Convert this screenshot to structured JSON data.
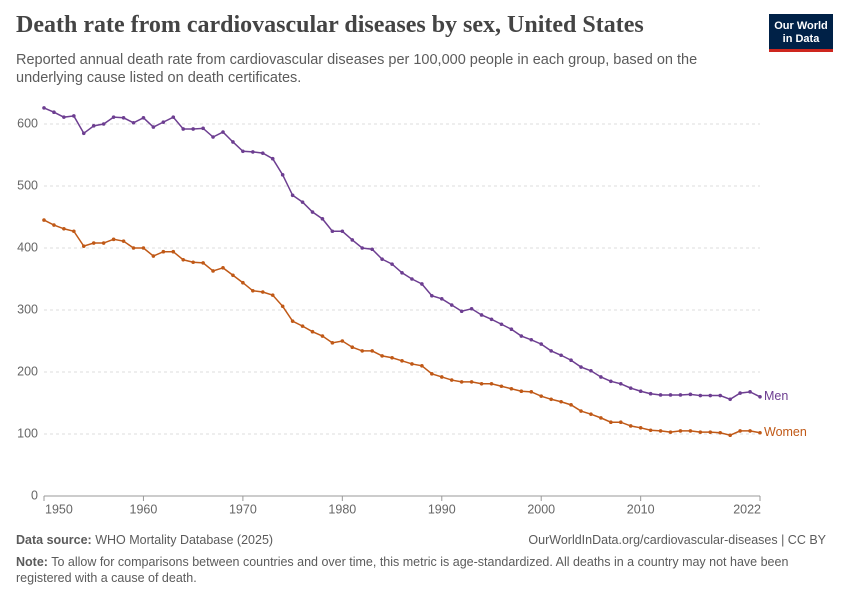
{
  "chart_data": {
    "type": "line",
    "title": "Death rate from cardiovascular diseases by sex, United States",
    "subtitle": "Reported annual death rate from cardiovascular diseases per 100,000 people in each group, based on the underlying cause listed on death certificates.",
    "logo": [
      "Our World",
      "in Data"
    ],
    "x": [
      1950,
      1951,
      1952,
      1953,
      1954,
      1955,
      1956,
      1957,
      1958,
      1959,
      1960,
      1961,
      1962,
      1963,
      1964,
      1965,
      1966,
      1967,
      1968,
      1969,
      1970,
      1971,
      1972,
      1973,
      1974,
      1975,
      1976,
      1977,
      1978,
      1979,
      1980,
      1981,
      1982,
      1983,
      1984,
      1985,
      1986,
      1987,
      1988,
      1989,
      1990,
      1991,
      1992,
      1993,
      1994,
      1995,
      1996,
      1997,
      1998,
      1999,
      2000,
      2001,
      2002,
      2003,
      2004,
      2005,
      2006,
      2007,
      2008,
      2009,
      2010,
      2011,
      2012,
      2013,
      2014,
      2015,
      2016,
      2017,
      2018,
      2019,
      2020,
      2021,
      2022
    ],
    "series": [
      {
        "name": "Men",
        "color": "#6d3e91",
        "values": [
          626,
          619,
          611,
          613,
          585,
          597,
          600,
          611,
          610,
          602,
          610,
          595,
          603,
          611,
          592,
          592,
          593,
          579,
          587,
          571,
          556,
          555,
          553,
          544,
          518,
          485,
          474,
          458,
          447,
          427,
          427,
          413,
          400,
          398,
          382,
          374,
          360,
          350,
          342,
          323,
          318,
          308,
          298,
          302,
          292,
          285,
          277,
          269,
          258,
          252,
          245,
          234,
          227,
          219,
          208,
          202,
          192,
          185,
          181,
          174,
          169,
          165,
          163,
          163,
          163,
          164,
          162,
          162,
          162,
          156,
          166,
          168,
          160
        ]
      },
      {
        "name": "Women",
        "color": "#c05917",
        "values": [
          445,
          437,
          431,
          427,
          403,
          408,
          408,
          414,
          411,
          400,
          400,
          387,
          394,
          394,
          381,
          377,
          376,
          363,
          368,
          356,
          344,
          331,
          329,
          324,
          306,
          282,
          274,
          265,
          258,
          247,
          250,
          240,
          234,
          234,
          226,
          223,
          218,
          213,
          210,
          197,
          192,
          187,
          184,
          184,
          181,
          181,
          177,
          173,
          169,
          168,
          161,
          156,
          152,
          147,
          137,
          132,
          126,
          119,
          119,
          113,
          110,
          106,
          105,
          103,
          105,
          105,
          103,
          103,
          102,
          98,
          105,
          105,
          102
        ]
      }
    ],
    "xlim": [
      1950,
      2022
    ],
    "xticks": [
      1950,
      1960,
      1970,
      1980,
      1990,
      2000,
      2010,
      2022
    ],
    "ylim": [
      0,
      600
    ],
    "yticks": [
      0,
      100,
      200,
      300,
      400,
      500,
      600
    ],
    "grid": true,
    "source_label": "Data source:",
    "source": "WHO Mortality Database (2025)",
    "url": "OurWorldInData.org/cardiovascular-diseases | CC BY",
    "note_label": "Note:",
    "note": "To allow for comparisons between countries and over time, this metric is age-standardized. All deaths in a country may not have been registered with a cause of death."
  }
}
